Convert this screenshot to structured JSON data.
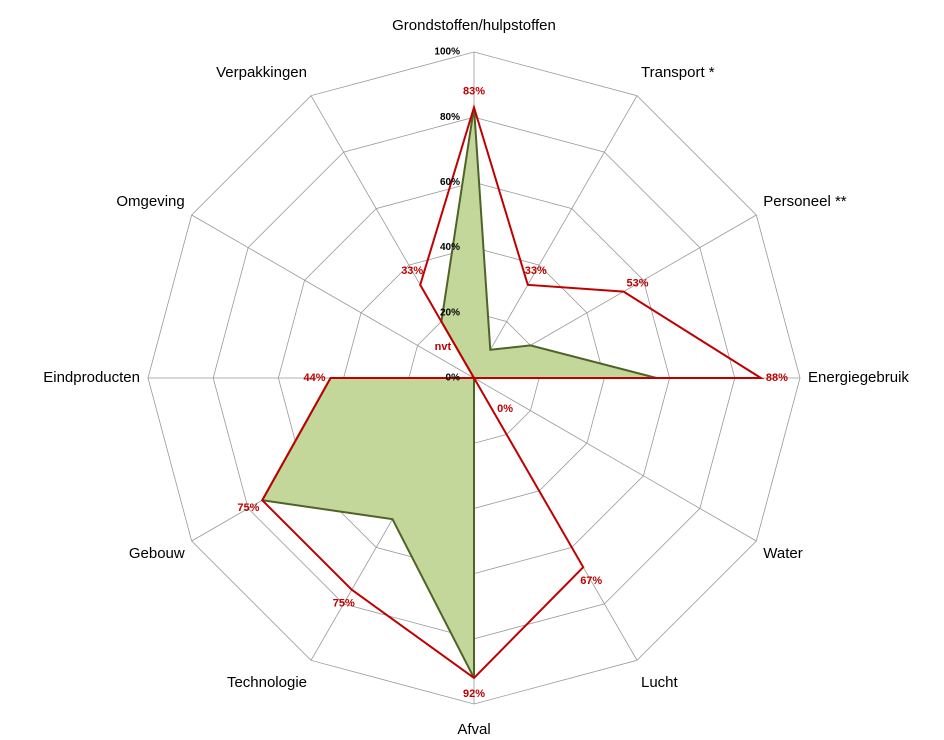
{
  "chart_data": {
    "type": "radar",
    "categories": [
      "Grondstoffen/hulpstoffen",
      "Transport *",
      "Personeel **",
      "Energiegebruik",
      "Water",
      "Lucht",
      "Afval",
      "Technologie",
      "Gebouw",
      "Eindproducten",
      "Omgeving",
      "Verpakkingen"
    ],
    "series": [
      {
        "color": "#c00000",
        "fill": "none",
        "values": [
          83,
          33,
          53,
          88,
          0,
          67,
          92,
          75,
          75,
          44,
          0,
          33
        ],
        "value_labels": [
          "83%",
          "33%",
          "53%",
          "88%",
          "0%",
          "67%",
          "92%",
          "75%",
          "75%",
          "44%",
          "nvt",
          "33%"
        ]
      },
      {
        "color": "#4f6228",
        "fill": "#c4d79b",
        "values": [
          83,
          10,
          20,
          56,
          0,
          0,
          92,
          50,
          75,
          44,
          0,
          20
        ]
      }
    ],
    "ylim": [
      0,
      100
    ],
    "yticks": [
      {
        "value": 0,
        "label": "0%"
      },
      {
        "value": 20,
        "label": "20%"
      },
      {
        "value": 40,
        "label": "40%"
      },
      {
        "value": 60,
        "label": "60%"
      },
      {
        "value": 80,
        "label": "80%"
      },
      {
        "value": 100,
        "label": "100%"
      }
    ],
    "grid": true
  }
}
